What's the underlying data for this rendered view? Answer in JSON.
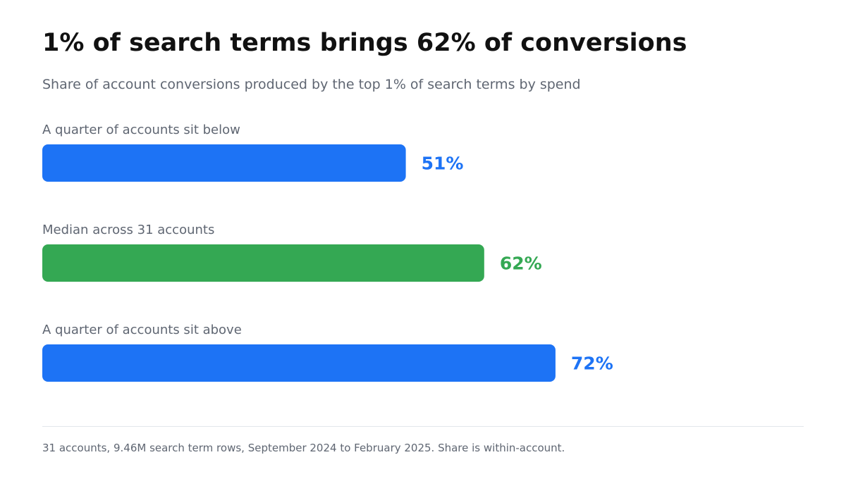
{
  "title": "1% of search terms brings 62% of conversions",
  "subtitle": "Share of account conversions produced by the top 1% of search terms by spend",
  "footnote": "31 accounts, 9.46M search term rows, September 2024 to February 2025. Share is within-account.",
  "colors": {
    "primary": "#1d73f5",
    "highlight": "#34a853",
    "muted_text": "#5f6672",
    "title_text": "#111111",
    "divider": "#e3e6eb"
  },
  "chart_data": {
    "type": "bar",
    "orientation": "horizontal",
    "categories": [
      "A quarter of accounts sit below",
      "Median across 31 accounts",
      "A quarter of accounts sit above"
    ],
    "values": [
      51,
      62,
      72
    ],
    "value_labels": [
      "51%",
      "62%",
      "72%"
    ],
    "bar_colors": [
      "#1d73f5",
      "#34a853",
      "#1d73f5"
    ],
    "title": "1% of search terms brings 62% of conversions",
    "subtitle": "Share of account conversions produced by the top 1% of search terms by spend",
    "xlim": [
      0,
      100
    ],
    "grid": false,
    "legend": "none"
  }
}
